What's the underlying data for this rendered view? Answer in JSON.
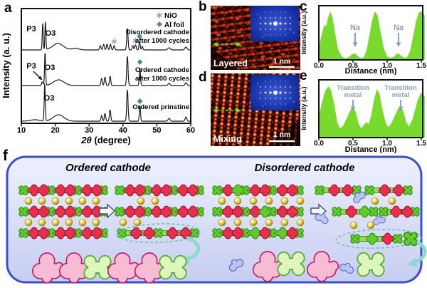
{
  "panel_letters": {
    "a": "a",
    "b": "b",
    "c": "c",
    "d": "d",
    "e": "e",
    "f": "f"
  },
  "colors": {
    "profile-green": "#79da2e",
    "curve": "#151515",
    "star-gray": "#8ba3ad",
    "diamond-teal": "#4e8e8e",
    "annot-gray": "#8aa2b2",
    "red-fill": "#e8304d",
    "red-edge": "#9d1030",
    "gc-fill": "#62ca2c",
    "gc-edge": "#2f8f12",
    "strip-fill": "#8edd55",
    "strip-edge": "#3f9e1c",
    "pink-fill": "#f5bcd4",
    "pink-edge": "#c2185b",
    "biggreen-fill": "#dcf6bd",
    "biggreen-edge": "#54ab28",
    "blue-fill": "#bcc5ef",
    "blue-edge": "#5d6ecc",
    "panel-border": "#3a4fd0",
    "teal-arrow": "#8fd8cc",
    "tem-bg": "#160301"
  },
  "chart_data": [
    {
      "id": "xrd",
      "type": "line",
      "panel": "a",
      "ylabel": "Intensity (a. u.)",
      "xlabel_prefix": "2θ",
      "xlabel_suffix": " (degree)",
      "x_range": [
        10,
        60
      ],
      "x_ticks": [
        "10",
        "20",
        "30",
        "40",
        "50",
        "60"
      ],
      "legend": [
        {
          "marker": "asterisk",
          "label": "NiO"
        },
        {
          "marker": "diamond",
          "label": "Al foil"
        }
      ],
      "series": [
        {
          "name": "Ordered prinstine",
          "label_lines": [
            "Ordered prinstine"
          ],
          "baseline": 170,
          "peaks": [
            [
              14.0,
              2,
              2
            ],
            [
              16.9,
              52,
              0.22
            ],
            [
              21.0,
              9,
              2.2
            ],
            [
              33.7,
              8,
              0.28
            ],
            [
              34.7,
              11,
              0.28
            ],
            [
              36.2,
              16,
              0.28
            ],
            [
              41.3,
              44,
              0.28
            ],
            [
              45.0,
              21,
              0.25
            ],
            [
              53.6,
              4,
              0.4
            ],
            [
              58.6,
              6,
              0.35
            ]
          ]
        },
        {
          "name": "Ordered cathode after 1000 cycles",
          "label_lines": [
            "Ordered cathode",
            "after 1000 cycles"
          ],
          "baseline": 120,
          "peaks": [
            [
              16.2,
              5,
              0.3
            ],
            [
              17.0,
              46,
              0.22
            ],
            [
              21.0,
              8,
              2.2
            ],
            [
              33.7,
              10,
              0.28
            ],
            [
              34.7,
              12,
              0.28
            ],
            [
              36.2,
              13,
              0.28
            ],
            [
              41.3,
              41,
              0.28
            ],
            [
              45.0,
              25,
              0.25
            ],
            [
              53.6,
              3,
              0.4
            ],
            [
              58.6,
              4,
              0.4
            ]
          ]
        },
        {
          "name": "Disordered cathode after 1000 cycles",
          "label_lines": [
            "Disordered cathode",
            "after 1000 cycles"
          ],
          "baseline": 70,
          "peaks": [
            [
              16.3,
              37,
              0.2
            ],
            [
              17.1,
              39,
              0.2
            ],
            [
              20.8,
              9,
              2.2
            ],
            [
              26.0,
              2,
              1.5
            ],
            [
              33.3,
              6,
              0.3
            ],
            [
              34.3,
              8,
              0.28
            ],
            [
              35.3,
              8,
              0.28
            ],
            [
              36.3,
              8,
              0.28
            ],
            [
              37.4,
              6,
              0.28
            ],
            [
              41.3,
              30,
              0.28
            ],
            [
              42.9,
              6,
              0.28
            ],
            [
              43.7,
              7,
              0.28
            ],
            [
              44.9,
              11,
              0.25
            ],
            [
              45.7,
              5,
              0.25
            ],
            [
              53.6,
              3,
              0.5
            ],
            [
              58.6,
              4,
              0.45
            ]
          ]
        }
      ],
      "markers": {
        "nio": [
          {
            "deg": 37.4,
            "y": 58
          },
          {
            "deg": 43.7,
            "y": 57
          }
        ],
        "al": [
          {
            "deg": 44.9,
            "y": 51
          },
          {
            "deg": 45.0,
            "y": 87
          },
          {
            "deg": 45.0,
            "y": 142
          }
        ]
      },
      "peak_labels": {
        "disordered_p3": "P3",
        "disordered_o3": "O3",
        "ordered_p3": "P3",
        "ordered_o3": "O3",
        "pristine_o3": "O3"
      }
    },
    {
      "id": "profile_layered",
      "type": "area",
      "panel": "c",
      "ylabel": "Intensity (a.u.)",
      "xlabel": "Distance (nm)",
      "x_ticks": [
        "0.0",
        "0.5",
        "1.0",
        "1.5"
      ],
      "x_range": [
        0,
        1.55
      ],
      "annotations": [
        {
          "label": "Na",
          "x": 0.53
        },
        {
          "label": "Na",
          "x": 1.17
        }
      ],
      "points": {
        "x": [
          0,
          0.03,
          0.08,
          0.11,
          0.13,
          0.17,
          0.2,
          0.24,
          0.28,
          0.33,
          0.38,
          0.44,
          0.49,
          0.53,
          0.57,
          0.62,
          0.66,
          0.7,
          0.74,
          0.78,
          0.82,
          0.86,
          0.9,
          0.95,
          1.0,
          1.05,
          1.1,
          1.14,
          1.17,
          1.21,
          1.26,
          1.3,
          1.34,
          1.38,
          1.42,
          1.46,
          1.5,
          1.53,
          1.55
        ],
        "y": [
          0.25,
          0.45,
          0.72,
          0.7,
          0.85,
          1.0,
          0.88,
          0.55,
          0.22,
          0.08,
          0.03,
          0.06,
          0.12,
          0.13,
          0.08,
          0.03,
          0.06,
          0.2,
          0.5,
          0.82,
          1.0,
          0.92,
          0.6,
          0.25,
          0.07,
          0.04,
          0.07,
          0.12,
          0.13,
          0.08,
          0.04,
          0.07,
          0.2,
          0.48,
          0.78,
          0.97,
          1.0,
          0.97,
          0.9
        ]
      }
    },
    {
      "id": "profile_mixing",
      "type": "area",
      "panel": "e",
      "ylabel": "Intensity (a.u.)",
      "xlabel": "Distance (nm)",
      "x_ticks": [
        "0.0",
        "0.5",
        "1.0",
        "1.5"
      ],
      "x_range": [
        0,
        1.55
      ],
      "annotations": [
        {
          "line1": "Transition",
          "line2": "metal",
          "x": 0.5
        },
        {
          "line1": "Transition",
          "line2": "metal",
          "x": 1.2
        }
      ],
      "points": {
        "x": [
          0,
          0.04,
          0.09,
          0.14,
          0.18,
          0.23,
          0.27,
          0.31,
          0.35,
          0.4,
          0.45,
          0.5,
          0.54,
          0.58,
          0.62,
          0.66,
          0.7,
          0.73,
          0.77,
          0.81,
          0.85,
          0.89,
          0.93,
          0.98,
          1.02,
          1.07,
          1.12,
          1.16,
          1.2,
          1.24,
          1.28,
          1.32,
          1.37,
          1.41,
          1.45,
          1.5,
          1.55
        ],
        "y": [
          0.4,
          0.65,
          0.9,
          1.0,
          0.92,
          0.62,
          0.3,
          0.18,
          0.22,
          0.35,
          0.5,
          0.62,
          0.5,
          0.28,
          0.18,
          0.25,
          0.3,
          0.26,
          0.45,
          0.75,
          0.95,
          0.85,
          0.55,
          0.28,
          0.2,
          0.3,
          0.45,
          0.56,
          0.62,
          0.5,
          0.3,
          0.22,
          0.35,
          0.55,
          0.75,
          0.88,
          0.8
        ]
      }
    }
  ],
  "tem": {
    "b": {
      "label": "Layered",
      "scale_bar": "1 nm"
    },
    "d": {
      "label": "Mixing",
      "scale_bar": "1 nm"
    }
  },
  "schematic": {
    "left_title": "Ordered cathode",
    "right_title": "Disordered cathode"
  }
}
